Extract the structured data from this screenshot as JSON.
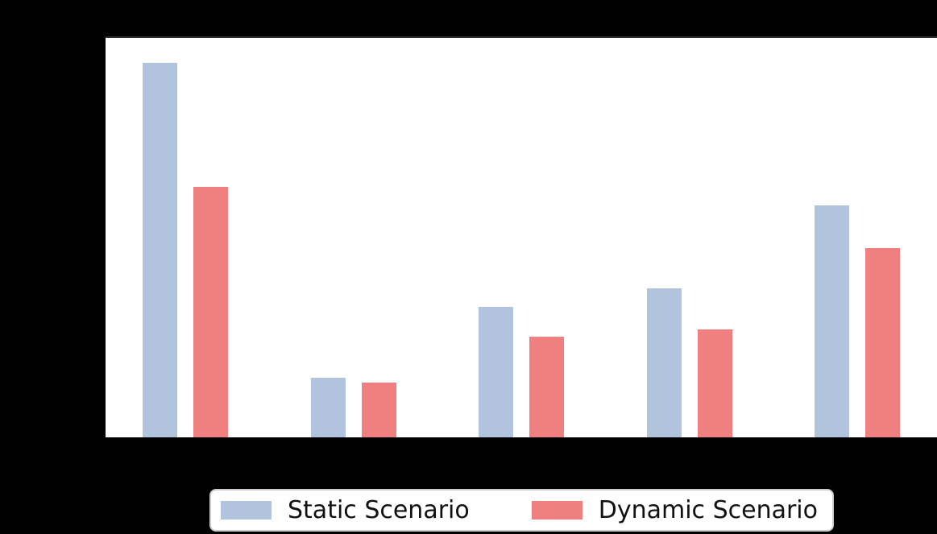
{
  "chart_data": {
    "type": "bar",
    "title": "",
    "xlabel": "",
    "ylabel": "",
    "categories": [
      "",
      "",
      "",
      "",
      ""
    ],
    "series": [
      {
        "name": "Static Scenario",
        "color": "#b0c4de",
        "values": [
          0.938,
          0.149,
          0.327,
          0.372,
          0.581
        ]
      },
      {
        "name": "Dynamic Scenario",
        "color": "#f08080",
        "values": [
          0.627,
          0.137,
          0.253,
          0.27,
          0.474
        ]
      }
    ],
    "ylim": [
      0,
      1
    ],
    "grid": false,
    "legend_position": "below-chart",
    "tick_labels_visible": false,
    "note_units": "values are fractions of visible plot height; axis tick labels are not visible in the image"
  },
  "legend": {
    "items": [
      {
        "label": "Static Scenario",
        "color": "#b0c4de"
      },
      {
        "label": "Dynamic Scenario",
        "color": "#f08080"
      }
    ]
  },
  "colors": {
    "page_background": "#000000",
    "plot_background": "#ffffff",
    "top_spine": "#222222",
    "legend_border": "#cccccc",
    "legend_background": "#ffffff",
    "legend_text": "#111111"
  }
}
